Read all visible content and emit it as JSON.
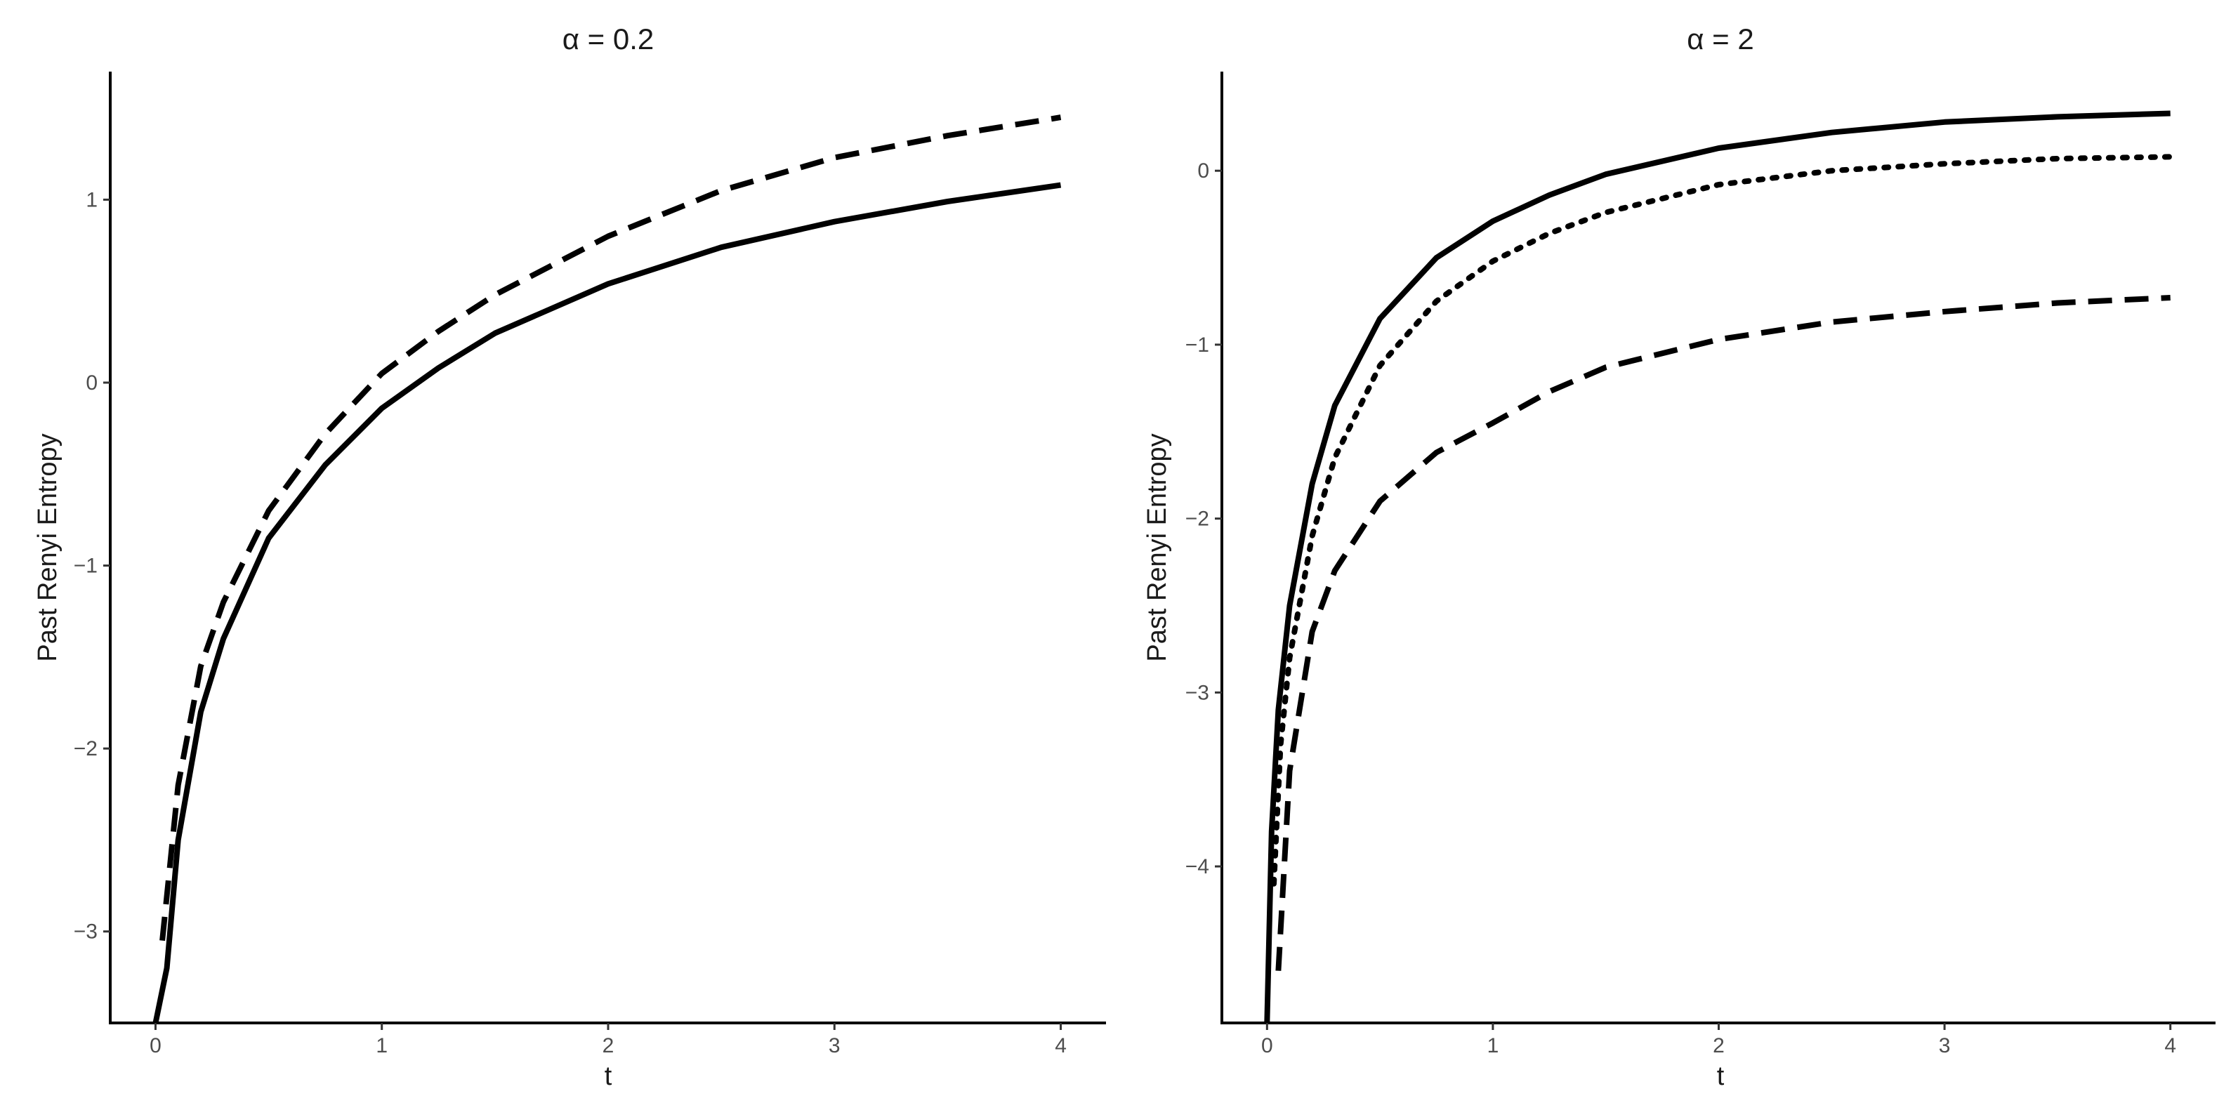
{
  "chart_data": [
    {
      "type": "line",
      "title": "α = 0.2",
      "xlabel": "t",
      "ylabel": "Past Renyi Entropy",
      "xlim": [
        -0.2,
        4.2
      ],
      "ylim": [
        -3.5,
        1.7
      ],
      "xticks": [
        "0",
        "1",
        "2",
        "3",
        "4"
      ],
      "yticks": [
        "−3",
        "−2",
        "−1",
        "0",
        "1"
      ],
      "grid": false,
      "series": [
        {
          "style": "solid",
          "x": [
            0,
            0.05,
            0.1,
            0.2,
            0.3,
            0.5,
            0.75,
            1,
            1.25,
            1.5,
            2,
            2.5,
            3,
            3.5,
            4
          ],
          "y": [
            -3.5,
            -3.2,
            -2.5,
            -1.8,
            -1.4,
            -0.85,
            -0.45,
            -0.14,
            0.08,
            0.27,
            0.54,
            0.74,
            0.88,
            0.99,
            1.08
          ]
        },
        {
          "style": "dashed",
          "x": [
            0.03,
            0.1,
            0.2,
            0.3,
            0.5,
            0.75,
            1,
            1.25,
            1.5,
            2,
            2.5,
            3,
            3.5,
            4
          ],
          "y": [
            -3.05,
            -2.2,
            -1.55,
            -1.2,
            -0.7,
            -0.28,
            0.05,
            0.28,
            0.48,
            0.8,
            1.05,
            1.23,
            1.35,
            1.45
          ]
        }
      ]
    },
    {
      "type": "line",
      "title": "α = 2",
      "xlabel": "t",
      "ylabel": "Past Renyi Entropy",
      "xlim": [
        -0.2,
        4.2
      ],
      "ylim": [
        -4.9,
        0.57
      ],
      "xticks": [
        "0",
        "1",
        "2",
        "3",
        "4"
      ],
      "yticks": [
        "−4",
        "−3",
        "−2",
        "−1",
        "0"
      ],
      "grid": false,
      "series": [
        {
          "style": "solid",
          "x": [
            0,
            0.02,
            0.05,
            0.1,
            0.2,
            0.3,
            0.5,
            0.75,
            1,
            1.25,
            1.5,
            2,
            2.5,
            3,
            3.5,
            4
          ],
          "y": [
            -4.9,
            -3.8,
            -3.1,
            -2.5,
            -1.8,
            -1.35,
            -0.85,
            -0.5,
            -0.29,
            -0.14,
            -0.02,
            0.13,
            0.22,
            0.28,
            0.31,
            0.33
          ]
        },
        {
          "style": "dotted",
          "x": [
            0.03,
            0.06,
            0.1,
            0.2,
            0.3,
            0.5,
            0.75,
            1,
            1.25,
            1.5,
            2,
            2.5,
            3,
            3.5,
            4
          ],
          "y": [
            -4.1,
            -3.3,
            -2.8,
            -2.1,
            -1.65,
            -1.12,
            -0.75,
            -0.52,
            -0.36,
            -0.24,
            -0.08,
            0.0,
            0.04,
            0.07,
            0.08
          ]
        },
        {
          "style": "dashed",
          "x": [
            0.05,
            0.1,
            0.2,
            0.3,
            0.5,
            0.75,
            1,
            1.25,
            1.5,
            2,
            2.5,
            3,
            3.5,
            4
          ],
          "y": [
            -4.6,
            -3.45,
            -2.65,
            -2.3,
            -1.9,
            -1.62,
            -1.45,
            -1.27,
            -1.13,
            -0.97,
            -0.87,
            -0.81,
            -0.76,
            -0.73
          ]
        }
      ]
    }
  ]
}
